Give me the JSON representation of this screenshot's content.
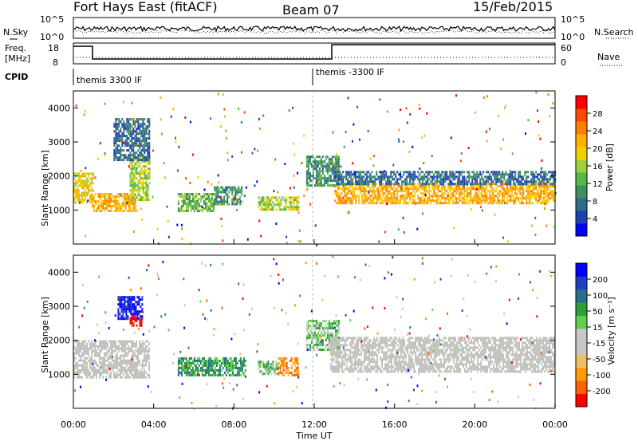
{
  "header": {
    "station": "Fort Hays East (fitACF)",
    "beam": "Beam 07",
    "date": "15/Feb/2015"
  },
  "noise_panel": {
    "left_label": "N.Sky",
    "right_label": "N.Search",
    "left_ticks": [
      "10^5",
      "10^0"
    ],
    "right_ticks": [
      "10^5",
      "10^0"
    ]
  },
  "freq_panel": {
    "left_label_line1": "Freq.",
    "left_label_line2": "[MHz]",
    "right_label": "Nave",
    "left_ticks": [
      "18",
      "8"
    ],
    "right_ticks": [
      "60",
      "0"
    ]
  },
  "cpid_panel": {
    "label": "CPID",
    "modes": [
      "themis 3300 IF",
      "themis -3300 IF"
    ]
  },
  "colors": {
    "power_scale": [
      "#0000ff",
      "#1e3fb4",
      "#2e6b8c",
      "#3f8f5f",
      "#57b84a",
      "#9ed13c",
      "#f5d000",
      "#ffb000",
      "#ff8000",
      "#ff4a00",
      "#ff0000"
    ],
    "velocity_scale": [
      "#ff0000",
      "#ff6000",
      "#ff9a00",
      "#f0c060",
      "#c8c8c8",
      "#c8c8c8",
      "#5fd04a",
      "#2e9e3a",
      "#2a6e8e",
      "#1f3fc0",
      "#0000ff"
    ],
    "ground_scatter": "#c0c0bc"
  },
  "chart_data": [
    {
      "type": "heatmap",
      "name": "power",
      "xlabel": "",
      "ylabel": "Slant Range [km]",
      "x_range_hours": [
        0,
        24
      ],
      "ylim": [
        0,
        4500
      ],
      "y_ticks": [
        "1000",
        "2000",
        "3000",
        "4000"
      ],
      "colorbar_label": "Power [dB]",
      "colorbar_ticks": [
        "4",
        "8",
        "12",
        "16",
        "20",
        "24",
        "28"
      ],
      "regions": [
        {
          "t0": 0.0,
          "t1": 1.0,
          "r0": 1200,
          "r1": 2100,
          "level": 6
        },
        {
          "t0": 0.9,
          "t1": 3.1,
          "r0": 1000,
          "r1": 1500,
          "level": 7
        },
        {
          "t0": 2.8,
          "t1": 3.8,
          "r0": 1300,
          "r1": 2600,
          "level": 5
        },
        {
          "t0": 2.0,
          "t1": 3.8,
          "r0": 2500,
          "r1": 3700,
          "level": 2
        },
        {
          "t0": 5.2,
          "t1": 7.0,
          "r0": 1000,
          "r1": 1500,
          "level": 4
        },
        {
          "t0": 7.0,
          "t1": 8.4,
          "r0": 1200,
          "r1": 1700,
          "level": 3
        },
        {
          "t0": 9.2,
          "t1": 11.2,
          "r0": 1000,
          "r1": 1400,
          "level": 5
        },
        {
          "t0": 11.6,
          "t1": 13.2,
          "r0": 1700,
          "r1": 2600,
          "level": 3
        },
        {
          "t0": 13.0,
          "t1": 24.0,
          "r0": 1200,
          "r1": 1800,
          "level": 7
        },
        {
          "t0": 13.0,
          "t1": 24.0,
          "r0": 1750,
          "r1": 2150,
          "level": 2
        }
      ]
    },
    {
      "type": "heatmap",
      "name": "velocity",
      "xlabel": "Time UT",
      "ylabel": "Slant Range [km]",
      "x_range_hours": [
        0,
        24
      ],
      "x_ticks": [
        "00:00",
        "04:00",
        "08:00",
        "12:00",
        "16:00",
        "20:00",
        "00:00"
      ],
      "ylim": [
        0,
        4500
      ],
      "y_ticks": [
        "1000",
        "2000",
        "3000",
        "4000"
      ],
      "colorbar_label": "Velocity [m s⁻¹]",
      "colorbar_ticks": [
        "-200",
        "-100",
        "-50",
        "-15",
        "15",
        "50",
        "100",
        "200"
      ],
      "regions": [
        {
          "t0": 0.0,
          "t1": 3.8,
          "r0": 900,
          "r1": 2000,
          "level": "gs"
        },
        {
          "t0": 2.2,
          "t1": 3.4,
          "r0": 2600,
          "r1": 3300,
          "level": 10
        },
        {
          "t0": 2.8,
          "t1": 3.4,
          "r0": 2400,
          "r1": 2750,
          "level": 0
        },
        {
          "t0": 5.2,
          "t1": 8.6,
          "r0": 1000,
          "r1": 1500,
          "level": 7
        },
        {
          "t0": 9.2,
          "t1": 10.2,
          "r0": 1000,
          "r1": 1400,
          "level": 6
        },
        {
          "t0": 10.2,
          "t1": 11.2,
          "r0": 1000,
          "r1": 1500,
          "level": 2
        },
        {
          "t0": 11.6,
          "t1": 13.2,
          "r0": 1700,
          "r1": 2600,
          "level": 6
        },
        {
          "t0": 12.8,
          "t1": 24.0,
          "r0": 1100,
          "r1": 2100,
          "level": "gs"
        }
      ]
    }
  ]
}
